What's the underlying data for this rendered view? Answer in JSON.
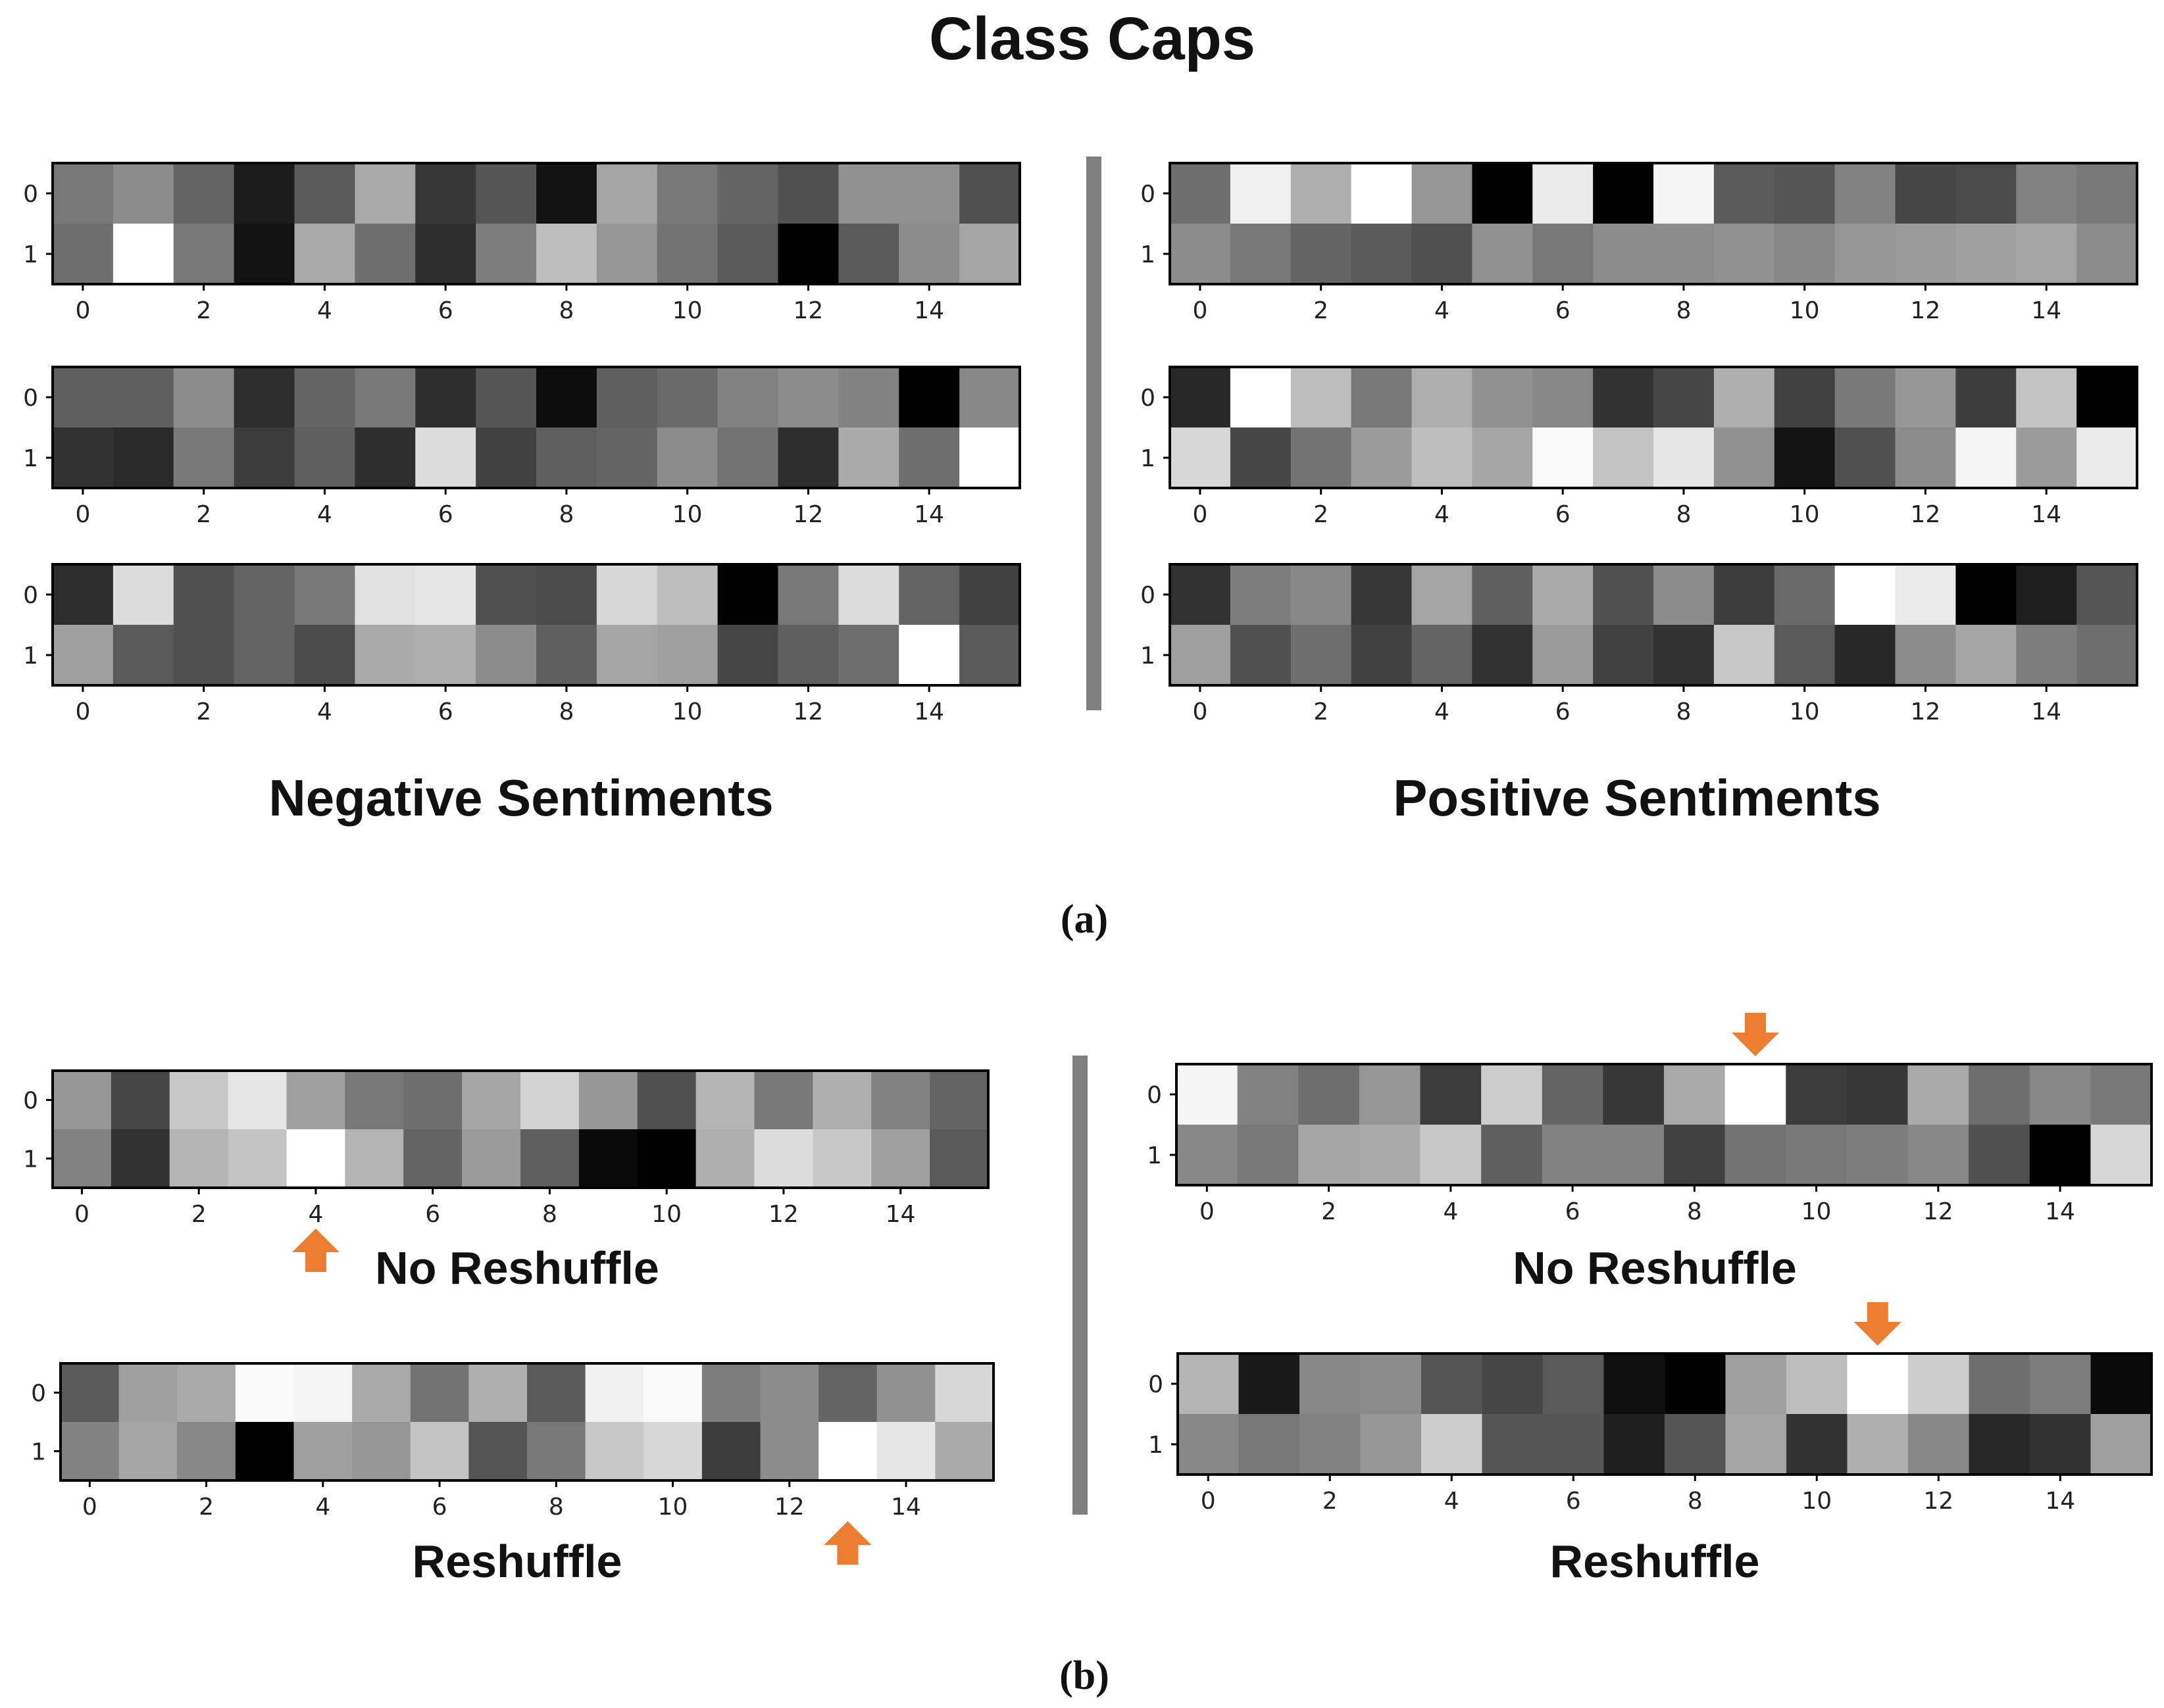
{
  "title": "Class Caps",
  "panel_a": {
    "caption": "(a)",
    "negative_label": "Negative Sentiments",
    "positive_label": "Positive Sentiments"
  },
  "panel_b": {
    "caption": "(b)",
    "left_top_label": "No Reshuffle",
    "left_bottom_label": "Reshuffle",
    "right_top_label": "No Reshuffle",
    "right_bottom_label": "Reshuffle"
  },
  "colors": {
    "arrow": "#ed7d31",
    "divider": "#808080",
    "frame": "#000000"
  },
  "chart_data": [
    {
      "id": "a-neg-1",
      "type": "heatmap",
      "colormap": "gray (0=black, 255=white)",
      "x_ticks": [
        0,
        2,
        4,
        6,
        8,
        10,
        12,
        14
      ],
      "y_ticks": [
        0,
        1
      ],
      "values": [
        [
          120,
          140,
          100,
          28,
          90,
          170,
          55,
          85,
          18,
          165,
          120,
          100,
          80,
          145,
          145,
          80
        ],
        [
          110,
          255,
          120,
          18,
          170,
          110,
          45,
          125,
          190,
          150,
          115,
          90,
          0,
          90,
          140,
          165
        ]
      ]
    },
    {
      "id": "a-neg-2",
      "type": "heatmap",
      "colormap": "gray",
      "x_ticks": [
        0,
        2,
        4,
        6,
        8,
        10,
        12,
        14
      ],
      "y_ticks": [
        0,
        1
      ],
      "values": [
        [
          95,
          95,
          140,
          45,
          100,
          120,
          45,
          85,
          12,
          95,
          105,
          130,
          140,
          130,
          0,
          135
        ],
        [
          50,
          42,
          120,
          60,
          95,
          45,
          220,
          65,
          95,
          100,
          140,
          115,
          45,
          170,
          110,
          255
        ]
      ]
    },
    {
      "id": "a-neg-3",
      "type": "heatmap",
      "colormap": "gray",
      "x_ticks": [
        0,
        2,
        4,
        6,
        8,
        10,
        12,
        14
      ],
      "y_ticks": [
        0,
        1
      ],
      "values": [
        [
          45,
          220,
          80,
          100,
          120,
          225,
          230,
          80,
          75,
          215,
          190,
          0,
          120,
          220,
          100,
          65
        ],
        [
          160,
          90,
          80,
          100,
          75,
          170,
          175,
          140,
          95,
          165,
          160,
          70,
          95,
          110,
          255,
          90
        ]
      ]
    },
    {
      "id": "a-pos-1",
      "type": "heatmap",
      "colormap": "gray",
      "x_ticks": [
        0,
        2,
        4,
        6,
        8,
        10,
        12,
        14
      ],
      "y_ticks": [
        0,
        1
      ],
      "values": [
        [
          110,
          240,
          175,
          255,
          150,
          0,
          235,
          0,
          245,
          90,
          85,
          130,
          70,
          75,
          130,
          120
        ],
        [
          140,
          120,
          100,
          90,
          80,
          145,
          120,
          140,
          140,
          145,
          135,
          150,
          155,
          160,
          165,
          140
        ]
      ]
    },
    {
      "id": "a-pos-2",
      "type": "heatmap",
      "colormap": "gray",
      "x_ticks": [
        0,
        2,
        4,
        6,
        8,
        10,
        12,
        14
      ],
      "y_ticks": [
        0,
        1
      ],
      "values": [
        [
          40,
          255,
          190,
          120,
          175,
          145,
          135,
          50,
          70,
          175,
          65,
          120,
          150,
          60,
          195,
          0
        ],
        [
          215,
          70,
          115,
          155,
          190,
          165,
          250,
          195,
          230,
          145,
          20,
          80,
          140,
          245,
          155,
          235
        ]
      ]
    },
    {
      "id": "a-pos-3",
      "type": "heatmap",
      "colormap": "gray",
      "x_ticks": [
        0,
        2,
        4,
        6,
        8,
        10,
        12,
        14
      ],
      "y_ticks": [
        0,
        1
      ],
      "values": [
        [
          50,
          125,
          135,
          55,
          165,
          95,
          170,
          80,
          140,
          60,
          105,
          255,
          235,
          0,
          30,
          85
        ],
        [
          160,
          80,
          110,
          65,
          100,
          50,
          155,
          65,
          50,
          200,
          90,
          40,
          140,
          165,
          125,
          110
        ]
      ]
    },
    {
      "id": "b-left-no-reshuffle",
      "type": "heatmap",
      "colormap": "gray",
      "x_ticks": [
        0,
        2,
        4,
        6,
        8,
        10,
        12,
        14
      ],
      "y_ticks": [
        0,
        1
      ],
      "highlight": {
        "col": 4,
        "direction": "up"
      },
      "values": [
        [
          150,
          70,
          200,
          230,
          160,
          120,
          110,
          165,
          210,
          150,
          80,
          180,
          120,
          175,
          130,
          100
        ],
        [
          130,
          50,
          180,
          195,
          255,
          180,
          100,
          155,
          95,
          10,
          0,
          175,
          220,
          200,
          160,
          90
        ]
      ]
    },
    {
      "id": "b-left-reshuffle",
      "type": "heatmap",
      "colormap": "gray",
      "x_ticks": [
        0,
        2,
        4,
        6,
        8,
        10,
        12,
        14
      ],
      "y_ticks": [
        0,
        1
      ],
      "highlight": {
        "col": 13,
        "direction": "up"
      },
      "values": [
        [
          90,
          160,
          170,
          250,
          245,
          170,
          115,
          175,
          90,
          240,
          250,
          125,
          140,
          100,
          145,
          215
        ],
        [
          130,
          165,
          135,
          0,
          160,
          150,
          195,
          85,
          120,
          200,
          215,
          60,
          140,
          255,
          230,
          170
        ]
      ]
    },
    {
      "id": "b-right-no-reshuffle",
      "type": "heatmap",
      "colormap": "gray",
      "x_ticks": [
        0,
        2,
        4,
        6,
        8,
        10,
        12,
        14
      ],
      "y_ticks": [
        0,
        1
      ],
      "highlight": {
        "col": 9,
        "direction": "down"
      },
      "values": [
        [
          245,
          130,
          110,
          150,
          60,
          205,
          100,
          55,
          170,
          255,
          60,
          55,
          170,
          110,
          135,
          120
        ],
        [
          135,
          120,
          165,
          170,
          200,
          95,
          130,
          130,
          65,
          115,
          120,
          125,
          135,
          80,
          0,
          215
        ]
      ]
    },
    {
      "id": "b-right-reshuffle",
      "type": "heatmap",
      "colormap": "gray",
      "x_ticks": [
        0,
        2,
        4,
        6,
        8,
        10,
        12,
        14
      ],
      "y_ticks": [
        0,
        1
      ],
      "highlight": {
        "col": 11,
        "direction": "down"
      },
      "values": [
        [
          180,
          25,
          135,
          140,
          85,
          70,
          90,
          15,
          0,
          160,
          190,
          255,
          205,
          110,
          125,
          10
        ],
        [
          135,
          120,
          130,
          150,
          205,
          85,
          85,
          30,
          85,
          165,
          50,
          175,
          135,
          40,
          50,
          160
        ]
      ]
    }
  ]
}
